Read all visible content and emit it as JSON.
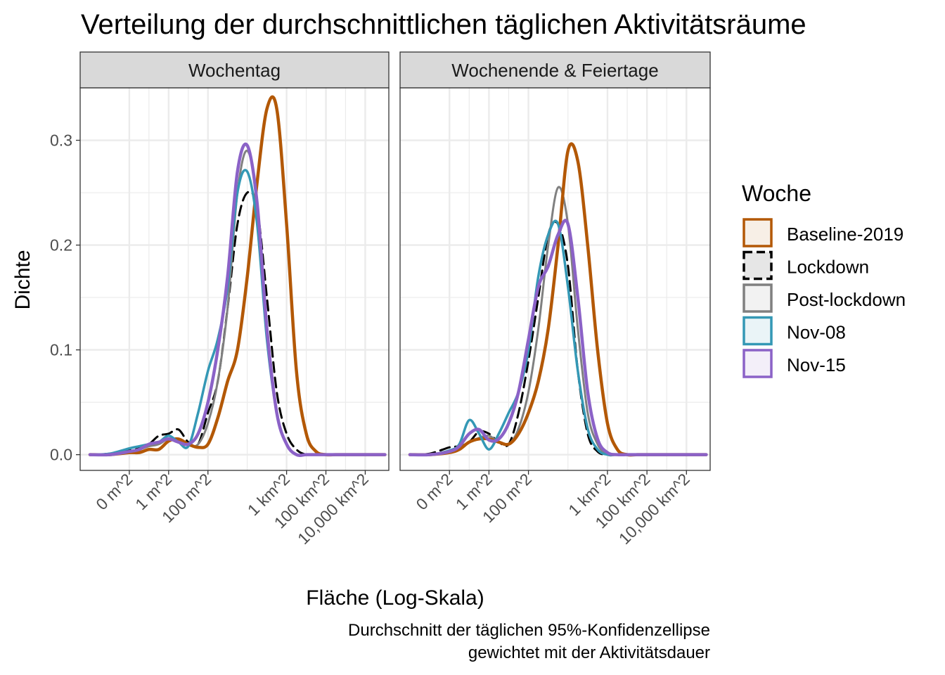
{
  "chart_data": {
    "type": "line",
    "title": "Verteilung der durchschnittlichen täglichen Aktivitätsräume",
    "xlabel": "Fläche (Log-Skala)",
    "ylabel": "Dichte",
    "caption_lines": [
      "Durchschnitt der täglichen 95%-Konfidenzellipse",
      "gewichtet mit der Aktivitätsdauer"
    ],
    "x_scale": "log10",
    "x_range_log10_m2": [
      -4.5,
      11.2
    ],
    "y_range": [
      -0.015,
      0.35
    ],
    "grid": true,
    "y_ticks": [
      {
        "value": 0.0,
        "label": "0.0"
      },
      {
        "value": 0.1,
        "label": "0.1"
      },
      {
        "value": 0.2,
        "label": "0.2"
      },
      {
        "value": 0.3,
        "label": "0.3"
      }
    ],
    "x_ticks": [
      {
        "log10_m2": -2,
        "label": "0 m^2"
      },
      {
        "log10_m2": 0,
        "label": "1 m^2"
      },
      {
        "log10_m2": 2,
        "label": "100 m^2"
      },
      {
        "log10_m2": 6,
        "label": "1 km^2"
      },
      {
        "log10_m2": 8,
        "label": "100 km^2"
      },
      {
        "log10_m2": 10,
        "label": "10,000 km^2"
      }
    ],
    "legend": {
      "title": "Woche",
      "position": "right",
      "entries": [
        {
          "name": "Baseline-2019",
          "color": "#B35806",
          "fill": "#F7EFE6",
          "dash": false
        },
        {
          "name": "Lockdown",
          "color": "#000000",
          "fill": "#E6E6E6",
          "dash": true
        },
        {
          "name": "Post-lockdown",
          "color": "#808080",
          "fill": "#F2F2F2",
          "dash": false
        },
        {
          "name": "Nov-08",
          "color": "#3498B5",
          "fill": "#EAF4F7",
          "dash": false
        },
        {
          "name": "Nov-15",
          "color": "#8B62C7",
          "fill": "#F3EFF9",
          "dash": false
        }
      ]
    },
    "panels": [
      {
        "strip": "Wochentag",
        "series": [
          {
            "name": "Baseline-2019",
            "x": [
              -4,
              -3,
              -2,
              -1.5,
              -1,
              -0.5,
              0,
              0.5,
              1,
              1.5,
              2,
              2.5,
              3,
              3.5,
              4,
              4.5,
              5,
              5.5,
              6,
              6.5,
              7,
              7.5,
              8,
              8.5,
              9,
              9.5,
              10,
              10.5,
              11
            ],
            "y": [
              0,
              0,
              0.002,
              0.002,
              0.005,
              0.005,
              0.013,
              0.015,
              0.01,
              0.007,
              0.01,
              0.035,
              0.07,
              0.1,
              0.17,
              0.26,
              0.33,
              0.33,
              0.22,
              0.08,
              0.02,
              0.003,
              0,
              0,
              0,
              0,
              0,
              0,
              0
            ]
          },
          {
            "name": "Lockdown",
            "x": [
              -4,
              -3,
              -2,
              -1.5,
              -1,
              -0.5,
              0,
              0.5,
              1,
              1.5,
              2,
              2.5,
              3,
              3.5,
              4,
              4.5,
              5,
              5.5,
              6,
              6.5,
              7,
              7.5,
              8,
              8.5,
              9,
              9.5,
              10,
              10.5,
              11
            ],
            "y": [
              0,
              0.001,
              0.004,
              0.006,
              0.01,
              0.018,
              0.02,
              0.024,
              0.012,
              0.01,
              0.04,
              0.07,
              0.14,
              0.22,
              0.25,
              0.235,
              0.15,
              0.06,
              0.02,
              0.005,
              0,
              0,
              0,
              0,
              0,
              0,
              0,
              0,
              0
            ]
          },
          {
            "name": "Post-lockdown",
            "x": [
              -4,
              -3,
              -2,
              -1.5,
              -1,
              -0.5,
              0,
              0.5,
              1,
              1.5,
              2,
              2.5,
              3,
              3.5,
              4,
              4.5,
              5,
              5.5,
              6,
              6.5,
              7,
              7.5,
              8,
              8.5,
              9,
              9.5,
              10,
              10.5,
              11
            ],
            "y": [
              0,
              0,
              0.003,
              0.005,
              0.008,
              0.01,
              0.015,
              0.012,
              0.009,
              0.01,
              0.03,
              0.07,
              0.14,
              0.25,
              0.29,
              0.24,
              0.12,
              0.04,
              0.01,
              0,
              0,
              0,
              0,
              0,
              0,
              0,
              0,
              0,
              0
            ]
          },
          {
            "name": "Nov-08",
            "x": [
              -4,
              -3,
              -2,
              -1.5,
              -1,
              -0.5,
              0,
              0.5,
              1,
              1.5,
              2,
              2.5,
              3,
              3.5,
              4,
              4.5,
              5,
              5.5,
              6,
              6.5,
              7,
              7.5,
              8,
              8.5,
              9,
              9.5,
              10,
              10.5,
              11
            ],
            "y": [
              0,
              0.001,
              0.006,
              0.008,
              0.01,
              0.012,
              0.018,
              0.012,
              0.008,
              0.04,
              0.08,
              0.11,
              0.16,
              0.25,
              0.27,
              0.22,
              0.11,
              0.04,
              0.01,
              0,
              0,
              0,
              0,
              0,
              0,
              0,
              0,
              0,
              0
            ]
          },
          {
            "name": "Nov-15",
            "x": [
              -4,
              -3,
              -2,
              -1.5,
              -1,
              -0.5,
              0,
              0.5,
              1,
              1.5,
              2,
              2.5,
              3,
              3.5,
              4,
              4.5,
              5,
              5.5,
              6,
              6.5,
              7,
              7.5,
              8,
              8.5,
              9,
              9.5,
              10,
              10.5,
              11
            ],
            "y": [
              0,
              0,
              0.003,
              0.005,
              0.01,
              0.012,
              0.015,
              0.012,
              0.01,
              0.02,
              0.05,
              0.1,
              0.17,
              0.27,
              0.295,
              0.24,
              0.12,
              0.04,
              0.01,
              0,
              0,
              0,
              0,
              0,
              0,
              0,
              0,
              0,
              0
            ]
          }
        ]
      },
      {
        "strip": "Wochenende & Feiertage",
        "series": [
          {
            "name": "Baseline-2019",
            "x": [
              -4,
              -3,
              -2,
              -1.5,
              -1,
              -0.5,
              0,
              0.5,
              1,
              1.5,
              2,
              2.5,
              3,
              3.5,
              4,
              4.5,
              5,
              5.5,
              6,
              6.5,
              7,
              7.5,
              8,
              8.5,
              9,
              9.5,
              10,
              10.5,
              11
            ],
            "y": [
              0,
              0,
              0.002,
              0.005,
              0.012,
              0.015,
              0.015,
              0.012,
              0.01,
              0.02,
              0.04,
              0.07,
              0.12,
              0.2,
              0.29,
              0.28,
              0.2,
              0.1,
              0.03,
              0.005,
              0,
              0,
              0,
              0,
              0,
              0,
              0,
              0,
              0
            ]
          },
          {
            "name": "Lockdown",
            "x": [
              -4,
              -3,
              -2,
              -1.5,
              -1,
              -0.5,
              0,
              0.5,
              1,
              1.5,
              2,
              2.5,
              3,
              3.5,
              4,
              4.5,
              5,
              5.5,
              6,
              6.5,
              7,
              7.5,
              8,
              8.5,
              9,
              9.5,
              10,
              10.5,
              11
            ],
            "y": [
              0,
              0.001,
              0.007,
              0.008,
              0.012,
              0.022,
              0.02,
              0.012,
              0.01,
              0.04,
              0.09,
              0.15,
              0.21,
              0.22,
              0.18,
              0.08,
              0.02,
              0.003,
              0,
              0,
              0,
              0,
              0,
              0,
              0,
              0,
              0,
              0,
              0
            ]
          },
          {
            "name": "Post-lockdown",
            "x": [
              -4,
              -3,
              -2,
              -1.5,
              -1,
              -0.5,
              0,
              0.5,
              1,
              1.5,
              2,
              2.5,
              3,
              3.5,
              4,
              4.5,
              5,
              5.5,
              6,
              6.5,
              7,
              7.5,
              8,
              8.5,
              9,
              9.5,
              10,
              10.5,
              11
            ],
            "y": [
              0,
              0,
              0.004,
              0.007,
              0.012,
              0.016,
              0.018,
              0.012,
              0.01,
              0.025,
              0.06,
              0.12,
              0.2,
              0.255,
              0.22,
              0.12,
              0.04,
              0.01,
              0,
              0,
              0,
              0,
              0,
              0,
              0,
              0,
              0,
              0,
              0
            ]
          },
          {
            "name": "Nov-08",
            "x": [
              -4,
              -3,
              -2,
              -1.5,
              -1,
              -0.5,
              0,
              0.5,
              1,
              1.5,
              2,
              2.5,
              3,
              3.5,
              4,
              4.5,
              5,
              5.5,
              6,
              6.5,
              7,
              7.5,
              8,
              8.5,
              9,
              9.5,
              10,
              10.5,
              11
            ],
            "y": [
              0,
              0,
              0.004,
              0.01,
              0.033,
              0.02,
              0.005,
              0.02,
              0.04,
              0.06,
              0.1,
              0.17,
              0.21,
              0.22,
              0.16,
              0.08,
              0.025,
              0.005,
              0,
              0,
              0,
              0,
              0,
              0,
              0,
              0,
              0,
              0,
              0
            ]
          },
          {
            "name": "Nov-15",
            "x": [
              -4,
              -3,
              -2,
              -1.5,
              -1,
              -0.5,
              0,
              0.5,
              1,
              1.5,
              2,
              2.5,
              3,
              3.5,
              4,
              4.5,
              5,
              5.5,
              6,
              6.5,
              7,
              7.5,
              8,
              8.5,
              9,
              9.5,
              10,
              10.5,
              11
            ],
            "y": [
              0,
              0,
              0.003,
              0.008,
              0.02,
              0.024,
              0.014,
              0.015,
              0.03,
              0.06,
              0.11,
              0.16,
              0.18,
              0.21,
              0.22,
              0.15,
              0.06,
              0.015,
              0.002,
              0,
              0,
              0,
              0,
              0,
              0,
              0,
              0,
              0,
              0
            ]
          }
        ]
      }
    ]
  }
}
